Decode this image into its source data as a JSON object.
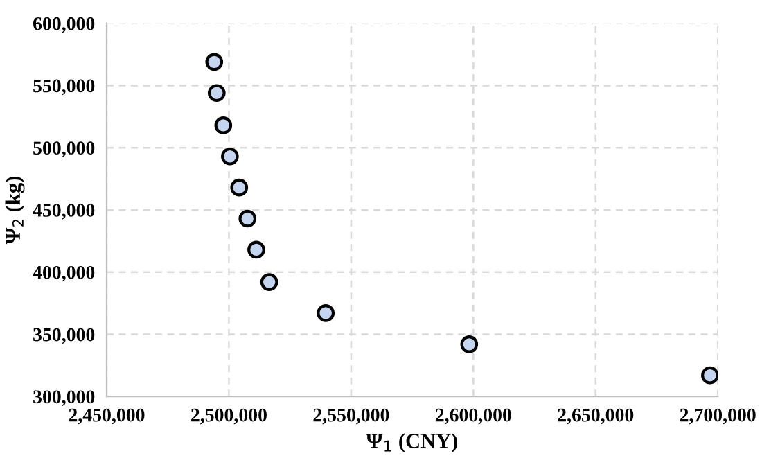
{
  "chart_data": {
    "type": "scatter",
    "xlabel": "Ψ$_{1}$ (CNY)",
    "ylabel": "Ψ$_{2}$ (kg)",
    "x": [
      2494000,
      2495000,
      2497700,
      2500400,
      2504200,
      2507600,
      2511200,
      2516500,
      2539600,
      2598300,
      2696800
    ],
    "series": [
      {
        "color": "#c5d5ef",
        "values": [
          569000,
          544000,
          518000,
          493000,
          468000,
          443000,
          418000,
          392000,
          367000,
          342000,
          317000
        ]
      }
    ],
    "xlim": [
      2450000,
      2700000
    ],
    "xticks": [
      {
        "value": 2450000,
        "label": "2,450,000"
      },
      {
        "value": 2500000,
        "label": "2,500,000"
      },
      {
        "value": 2550000,
        "label": "2,550,000"
      },
      {
        "value": 2600000,
        "label": "2,600,000"
      },
      {
        "value": 2650000,
        "label": "2,650,000"
      },
      {
        "value": 2700000,
        "label": "2,700,000"
      }
    ],
    "ylim": [
      300000,
      600000
    ],
    "yticks": [
      {
        "value": 300000,
        "label": "300,000"
      },
      {
        "value": 350000,
        "label": "350,000"
      },
      {
        "value": 400000,
        "label": "400,000"
      },
      {
        "value": 450000,
        "label": "450,000"
      },
      {
        "value": 500000,
        "label": "500,000"
      },
      {
        "value": 550000,
        "label": "550,000"
      },
      {
        "value": 600000,
        "label": "600,000"
      }
    ],
    "grid": true,
    "marker": "circle"
  }
}
